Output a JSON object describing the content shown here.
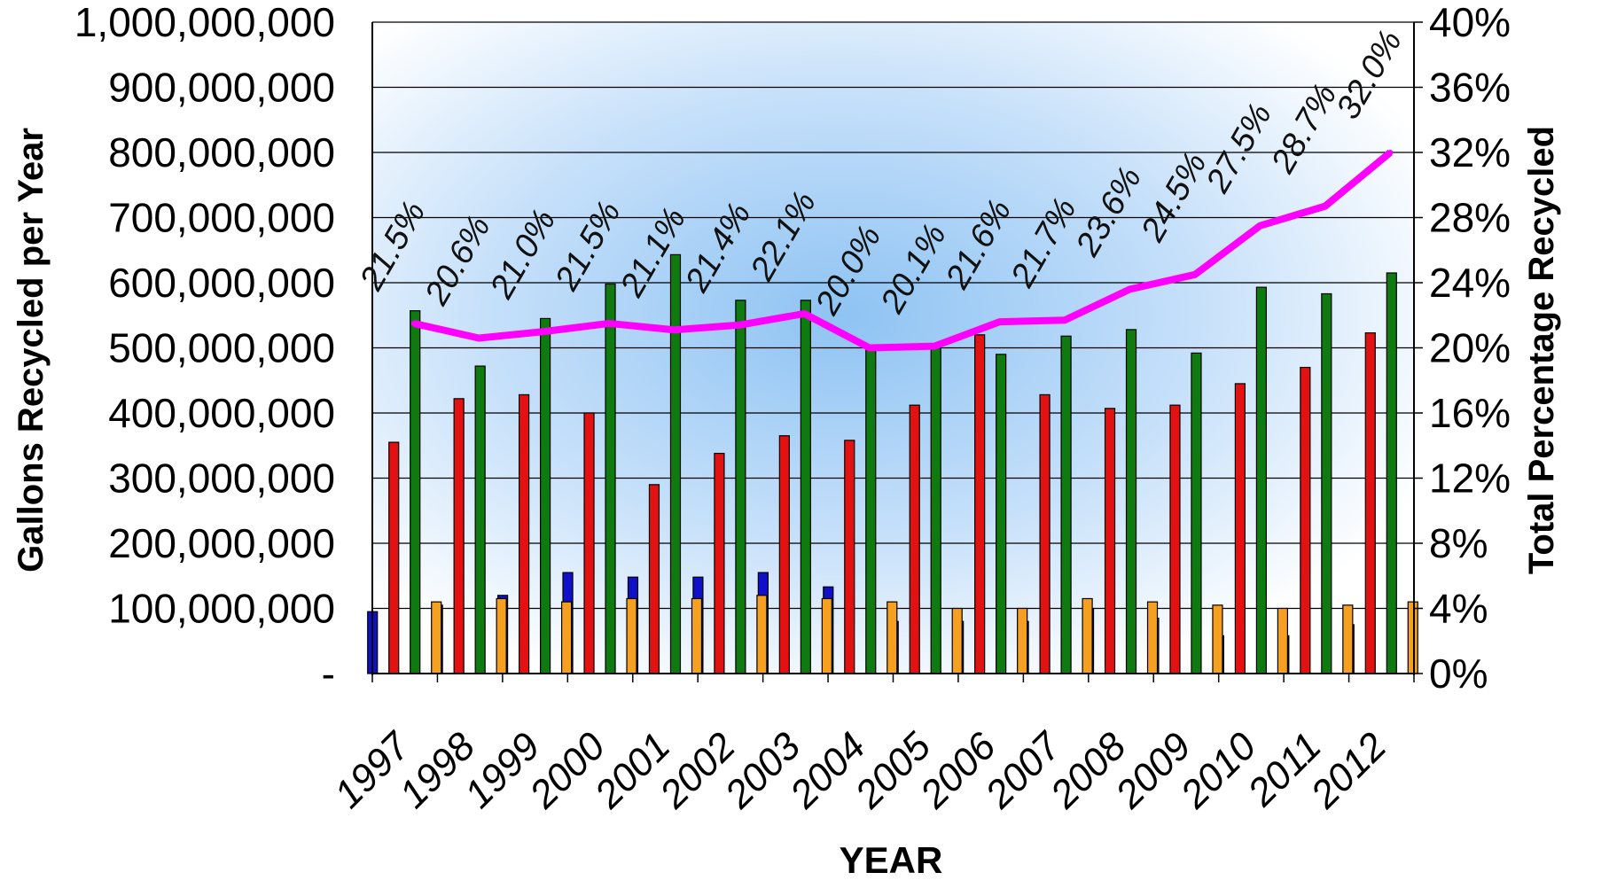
{
  "chart_data": {
    "type": "bar",
    "categories": [
      "1997",
      "1998",
      "1999",
      "2000",
      "2001",
      "2002",
      "2003",
      "2004",
      "2005",
      "2006",
      "2007",
      "2008",
      "2009",
      "2010",
      "2011",
      "2012"
    ],
    "series": [
      {
        "color": "#1010c8",
        "values": [
          95000000,
          105000000,
          120000000,
          155000000,
          148000000,
          148000000,
          155000000,
          133000000,
          80000000,
          80000000,
          80000000,
          100000000,
          85000000,
          58000000,
          58000000,
          75000000
        ]
      },
      {
        "color": "#e31212",
        "values": [
          355000000,
          422000000,
          428000000,
          400000000,
          290000000,
          338000000,
          365000000,
          358000000,
          412000000,
          520000000,
          428000000,
          407000000,
          412000000,
          445000000,
          470000000,
          523000000
        ]
      },
      {
        "color": "#0f7a0f",
        "values": [
          557000000,
          472000000,
          545000000,
          598000000,
          643000000,
          573000000,
          573000000,
          498000000,
          500000000,
          490000000,
          518000000,
          528000000,
          492000000,
          593000000,
          583000000,
          615000000
        ]
      },
      {
        "color": "#f5a020",
        "values": [
          110000000,
          115000000,
          110000000,
          115000000,
          115000000,
          120000000,
          115000000,
          110000000,
          100000000,
          100000000,
          115000000,
          110000000,
          105000000,
          100000000,
          105000000,
          110000000
        ]
      }
    ],
    "line_series": {
      "color": "#ff00ff",
      "axis": "right",
      "values": [
        21.5,
        20.6,
        21.0,
        21.5,
        21.1,
        21.4,
        22.1,
        20.0,
        20.1,
        21.6,
        21.7,
        23.6,
        24.5,
        27.5,
        28.7,
        32.0
      ],
      "labels": [
        "21.5%",
        "20.6%",
        "21.0%",
        "21.5%",
        "21.1%",
        "21.4%",
        "22.1%",
        "20.0%",
        "20.1%",
        "21.6%",
        "21.7%",
        "23.6%",
        "24.5%",
        "27.5%",
        "28.7%",
        "32.0%"
      ]
    },
    "xlabel": "YEAR",
    "ylabel": "Gallons Recycled per Year",
    "y2label": "Total Percentage Recycled",
    "ylim": [
      0,
      1000000000
    ],
    "y2lim": [
      0,
      40
    ],
    "yticks": [
      "-",
      "100,000,000",
      "200,000,000",
      "300,000,000",
      "400,000,000",
      "500,000,000",
      "600,000,000",
      "700,000,000",
      "800,000,000",
      "900,000,000",
      "1,000,000,000"
    ],
    "y2ticks": [
      "0%",
      "4%",
      "8%",
      "12%",
      "16%",
      "20%",
      "24%",
      "28%",
      "32%",
      "36%",
      "40%"
    ],
    "grid": true,
    "plot_background": "#8ec3f3"
  }
}
